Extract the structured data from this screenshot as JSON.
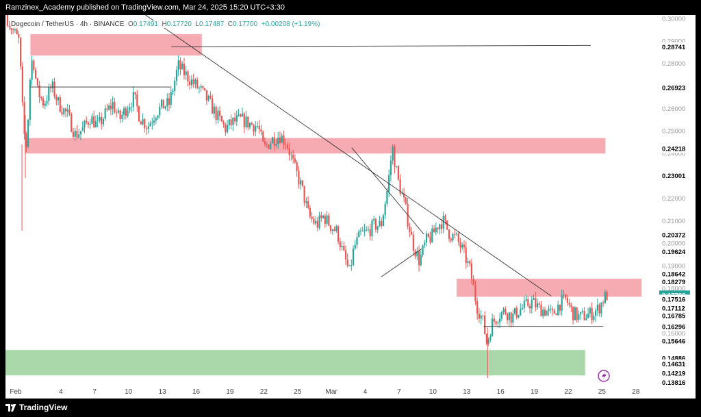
{
  "header": {
    "publisher_line": "Ramzinex_Academy published on TradingView.com, Mar 24, 2025 15:20 UTC+3:30"
  },
  "legend": {
    "symbol": "Dogecoin / TetherUS · 4h · BINANCE",
    "open_label": "O",
    "open": "0.17491",
    "high_label": "H",
    "high": "0.17720",
    "low_label": "L",
    "low": "0.17487",
    "close_label": "C",
    "close": "0.17700",
    "change": "+0.00208 (+1.19%)"
  },
  "footer": {
    "brand": "TradingView"
  },
  "colors": {
    "up": "#26a69a",
    "down": "#ef5350",
    "resistance_zone": "#f6a5ad",
    "support_zone": "#a5d6a7",
    "trendline": "#333333",
    "axis_text": "#444444"
  },
  "icons": {
    "lightning": "lightning-icon",
    "logo": "tradingview-logo-icon"
  },
  "chart_data": {
    "type": "candlestick",
    "title": "Dogecoin / TetherUS · 4h · BINANCE",
    "xlabel": "",
    "ylabel": "",
    "ylim": [
      0.1355,
      0.3015
    ],
    "x_ticks": [
      {
        "label": "Feb",
        "day": 0
      },
      {
        "label": "4",
        "day": 4
      },
      {
        "label": "7",
        "day": 7
      },
      {
        "label": "10",
        "day": 10
      },
      {
        "label": "13",
        "day": 13
      },
      {
        "label": "16",
        "day": 16
      },
      {
        "label": "19",
        "day": 19
      },
      {
        "label": "22",
        "day": 22
      },
      {
        "label": "25",
        "day": 25
      },
      {
        "label": "Mar",
        "day": 28
      },
      {
        "label": "4",
        "day": 31
      },
      {
        "label": "7",
        "day": 34
      },
      {
        "label": "10",
        "day": 37
      },
      {
        "label": "13",
        "day": 40
      },
      {
        "label": "16",
        "day": 43
      },
      {
        "label": "19",
        "day": 46
      },
      {
        "label": "22",
        "day": 49
      },
      {
        "label": "25",
        "day": 52
      },
      {
        "label": "28",
        "day": 55
      }
    ],
    "y_ticks": [
      "0.30000",
      "0.29000",
      "0.28000",
      "0.26000",
      "0.25000",
      "0.24000",
      "0.22000",
      "0.21000",
      "0.20000",
      "0.19000",
      "0.18000",
      "0.16000"
    ],
    "price_labels": [
      {
        "label": "0.28741",
        "value": 0.28741,
        "bg": "#000000"
      },
      {
        "label": "0.26923",
        "value": 0.26923,
        "bg": "#000000"
      },
      {
        "label": "0.24218",
        "value": 0.24218,
        "bg": "#000000"
      },
      {
        "label": "0.23001",
        "value": 0.23001,
        "bg": "#000000"
      },
      {
        "label": "0.20372",
        "value": 0.20372,
        "bg": "#000000"
      },
      {
        "label": "0.19624",
        "value": 0.19624,
        "bg": "#000000"
      },
      {
        "label": "0.18642",
        "value": 0.18642,
        "bg": "#000000"
      },
      {
        "label": "0.18279",
        "value": 0.18279,
        "bg": "#000000"
      },
      {
        "label": "0.17700",
        "value": 0.177,
        "bg": "#26a69a"
      },
      {
        "label": "0.17516",
        "value": 0.17516,
        "bg": "#000000"
      },
      {
        "label": "0.17112",
        "value": 0.17112,
        "bg": "#000000"
      },
      {
        "label": "0.16785",
        "value": 0.16785,
        "bg": "#000000"
      },
      {
        "label": "0.16296",
        "value": 0.16296,
        "bg": "#000000"
      },
      {
        "label": "0.15646",
        "value": 0.15646,
        "bg": "#000000"
      },
      {
        "label": "0.14886",
        "value": 0.14886,
        "bg": "#000000"
      },
      {
        "label": "0.14631",
        "value": 0.14631,
        "bg": "#000000"
      },
      {
        "label": "0.14219",
        "value": 0.14219,
        "bg": "#000000"
      },
      {
        "label": "0.13816",
        "value": 0.13816,
        "bg": "#000000"
      }
    ],
    "zones": [
      {
        "kind": "resistance",
        "day_from": 1.3,
        "day_to": 16.5,
        "price_top": 0.293,
        "price_bottom": 0.2835
      },
      {
        "kind": "resistance",
        "day_from": 0.8,
        "day_to": 52.3,
        "price_top": 0.2468,
        "price_bottom": 0.2399
      },
      {
        "kind": "resistance",
        "day_from": 39.1,
        "day_to": 55.5,
        "price_top": 0.1842,
        "price_bottom": 0.1762
      },
      {
        "kind": "support",
        "day_from": -3.4,
        "day_to": 50.5,
        "price_top": 0.1525,
        "price_bottom": 0.1412
      }
    ],
    "lines": [
      {
        "day1": 1.3,
        "p1": 0.2695,
        "day2": 13.8,
        "p2": 0.2695
      },
      {
        "day1": 13.8,
        "p1": 0.2874,
        "day2": 51.0,
        "p2": 0.288
      },
      {
        "day1": 8.5,
        "p1": 0.312,
        "day2": 47.5,
        "p2": 0.1765
      },
      {
        "day1": 29.8,
        "p1": 0.2425,
        "day2": 36.2,
        "p2": 0.204
      },
      {
        "day1": 32.4,
        "p1": 0.185,
        "day2": 36.0,
        "p2": 0.1975
      },
      {
        "day1": 41.5,
        "p1": 0.163,
        "day2": 52.1,
        "p2": 0.163
      }
    ],
    "trend_points": [
      [
        -0.9,
        0.302
      ],
      [
        -0.3,
        0.295
      ],
      [
        0.3,
        0.29
      ],
      [
        0.7,
        0.25
      ],
      [
        1.0,
        0.242
      ],
      [
        1.2,
        0.27
      ],
      [
        1.5,
        0.284
      ],
      [
        1.9,
        0.268
      ],
      [
        2.5,
        0.262
      ],
      [
        3.2,
        0.27
      ],
      [
        3.8,
        0.262
      ],
      [
        4.6,
        0.257
      ],
      [
        5.3,
        0.248
      ],
      [
        6.0,
        0.251
      ],
      [
        6.6,
        0.256
      ],
      [
        7.3,
        0.252
      ],
      [
        8.0,
        0.258
      ],
      [
        8.6,
        0.262
      ],
      [
        9.2,
        0.255
      ],
      [
        9.8,
        0.26
      ],
      [
        10.5,
        0.265
      ],
      [
        11.0,
        0.256
      ],
      [
        11.7,
        0.252
      ],
      [
        12.4,
        0.258
      ],
      [
        13.0,
        0.261
      ],
      [
        13.6,
        0.262
      ],
      [
        14.0,
        0.27
      ],
      [
        14.4,
        0.279
      ],
      [
        14.9,
        0.276
      ],
      [
        15.6,
        0.272
      ],
      [
        16.4,
        0.268
      ],
      [
        17.1,
        0.263
      ],
      [
        17.8,
        0.257
      ],
      [
        18.6,
        0.251
      ],
      [
        19.3,
        0.254
      ],
      [
        20.0,
        0.255
      ],
      [
        20.8,
        0.253
      ],
      [
        21.5,
        0.252
      ],
      [
        22.0,
        0.242
      ],
      [
        22.7,
        0.246
      ],
      [
        23.4,
        0.248
      ],
      [
        24.0,
        0.245
      ],
      [
        24.7,
        0.234
      ],
      [
        25.4,
        0.224
      ],
      [
        26.0,
        0.212
      ],
      [
        26.7,
        0.208
      ],
      [
        27.3,
        0.212
      ],
      [
        27.9,
        0.208
      ],
      [
        28.5,
        0.205
      ],
      [
        29.0,
        0.196
      ],
      [
        29.6,
        0.187
      ],
      [
        30.0,
        0.198
      ],
      [
        30.6,
        0.204
      ],
      [
        31.2,
        0.205
      ],
      [
        31.8,
        0.208
      ],
      [
        32.4,
        0.208
      ],
      [
        33.0,
        0.225
      ],
      [
        33.4,
        0.243
      ],
      [
        33.9,
        0.228
      ],
      [
        34.5,
        0.217
      ],
      [
        35.2,
        0.2
      ],
      [
        35.8,
        0.192
      ],
      [
        36.4,
        0.201
      ],
      [
        36.9,
        0.203
      ],
      [
        37.4,
        0.208
      ],
      [
        37.9,
        0.21
      ],
      [
        38.5,
        0.204
      ],
      [
        39.1,
        0.202
      ],
      [
        39.7,
        0.196
      ],
      [
        40.3,
        0.188
      ],
      [
        40.9,
        0.172
      ],
      [
        41.4,
        0.166
      ],
      [
        41.8,
        0.155
      ],
      [
        42.2,
        0.164
      ],
      [
        42.8,
        0.168
      ],
      [
        43.4,
        0.17
      ],
      [
        44.0,
        0.167
      ],
      [
        44.6,
        0.17
      ],
      [
        45.2,
        0.172
      ],
      [
        45.8,
        0.174
      ],
      [
        46.4,
        0.171
      ],
      [
        47.0,
        0.17
      ],
      [
        47.6,
        0.168
      ],
      [
        48.2,
        0.173
      ],
      [
        48.8,
        0.175
      ],
      [
        49.4,
        0.169
      ],
      [
        50.0,
        0.167
      ],
      [
        50.6,
        0.168
      ],
      [
        51.2,
        0.169
      ],
      [
        51.7,
        0.171
      ],
      [
        52.2,
        0.176
      ],
      [
        52.5,
        0.177
      ]
    ]
  }
}
